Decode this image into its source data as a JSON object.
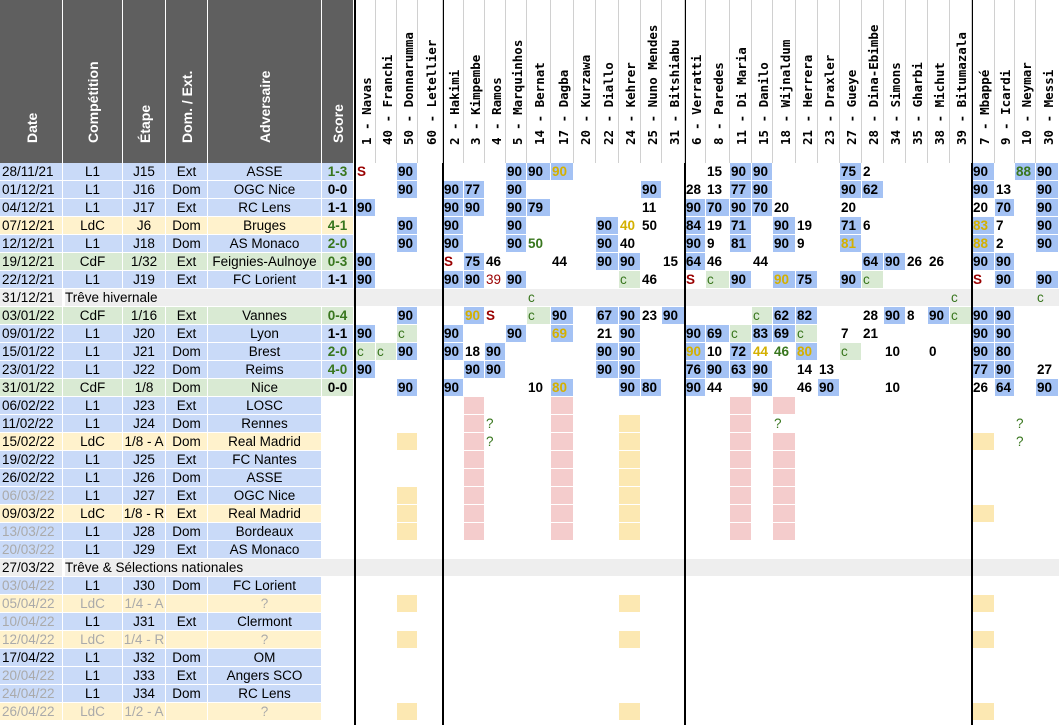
{
  "headers": [
    "Date",
    "Compétition",
    "Étape",
    "Dom. / Ext.",
    "Adversaire",
    "Score"
  ],
  "players": [
    "1 - Navas",
    "40 - Franchi",
    "50 - Donnarumma",
    "60 - Letellier",
    "2 - Hakimi",
    "3 - Kimpembe",
    "4 - Ramos",
    "5 - Marquinhos",
    "14 - Bernat",
    "17 - Dagba",
    "20 - Kurzawa",
    "22 - Diallo",
    "24 - Kehrer",
    "25 - Nuno Mendes",
    "31 - Bitshiabu",
    "6 - Verratti",
    "8 - Paredes",
    "11 - Di Maria",
    "15 - Danilo",
    "18 - Wijnaldum",
    "21 - Herrera",
    "23 - Draxler",
    "27 - Gueye",
    "28 - Dina-Ebimbe",
    "34 - Simons",
    "35 - Gharbi",
    "38 - Michut",
    "39 - Bitumazala",
    "7 - Mbappé",
    "9 - Icardi",
    "10 - Neymar",
    "30 - Messi"
  ],
  "colors": {
    "header": "#5f5f5f",
    "L1": "#c9daf8",
    "LdC": "#fff2cc",
    "CdF": "#d9ead3",
    "break": "#eeeeee",
    "starter": "#a4c2f4",
    "sub": "#d9ead3",
    "injured": "#f4cccc",
    "suspended": "#fce5cd",
    "lg_ldc": "#fce8b2",
    "highlight": "#ffff00"
  },
  "rows": [
    {
      "date": "28/11/21",
      "comp": "L1",
      "stage": "J15",
      "venue": "Ext",
      "opp": "ASSE",
      "score": "1-3",
      "played": true,
      "res": "W",
      "cells": [
        "S",
        "",
        "90",
        "",
        "",
        "",
        "",
        "90",
        "90",
        "90",
        "",
        "",
        "",
        "",
        "",
        "",
        "15",
        "90",
        "90",
        "",
        "",
        "",
        "75",
        "2",
        "",
        "",
        "",
        "",
        "90",
        "",
        "88",
        "90"
      ]
    },
    {
      "date": "01/12/21",
      "comp": "L1",
      "stage": "J16",
      "venue": "Dom",
      "opp": "OGC Nice",
      "score": "0-0",
      "played": true,
      "res": "D",
      "cells": [
        "",
        "",
        "90",
        "",
        "90",
        "77",
        "",
        "90",
        "",
        "",
        "",
        "",
        "",
        "90",
        "",
        "28",
        "13",
        "77",
        "90",
        "",
        "",
        "",
        "90",
        "62",
        "",
        "",
        "",
        "",
        "90",
        "13",
        "",
        "90"
      ]
    },
    {
      "date": "04/12/21",
      "comp": "L1",
      "stage": "J17",
      "venue": "Ext",
      "opp": "RC Lens",
      "score": "1-1",
      "played": true,
      "res": "D",
      "cells": [
        "90",
        "",
        "",
        "",
        "90",
        "90",
        "",
        "90",
        "79",
        "",
        "",
        "",
        "",
        "11",
        "",
        "90",
        "70",
        "90",
        "70",
        "20",
        "",
        "",
        "20",
        "",
        "",
        "",
        "",
        "",
        "20",
        "70",
        "",
        "90"
      ]
    },
    {
      "date": "07/12/21",
      "comp": "LdC",
      "stage": "J6",
      "venue": "Dom",
      "opp": "Bruges",
      "score": "4-1",
      "played": true,
      "res": "W",
      "cells": [
        "",
        "",
        "90",
        "",
        "90",
        "",
        "",
        "90",
        "",
        "",
        "",
        "90",
        "40",
        "50",
        "",
        "84",
        "19",
        "71",
        "",
        "90",
        "19",
        "",
        "71",
        "6",
        "",
        "",
        "",
        "",
        "83",
        "7",
        "",
        "90"
      ]
    },
    {
      "date": "12/12/21",
      "comp": "L1",
      "stage": "J18",
      "venue": "Dom",
      "opp": "AS Monaco",
      "score": "2-0",
      "played": true,
      "res": "W",
      "cells": [
        "",
        "",
        "90",
        "",
        "90",
        "",
        "",
        "90",
        "50",
        "",
        "",
        "90",
        "40",
        "",
        "",
        "90",
        "9",
        "81",
        "",
        "90",
        "9",
        "",
        "81",
        "",
        "",
        "",
        "",
        "",
        "88",
        "2",
        "",
        "90"
      ]
    },
    {
      "date": "19/12/21",
      "comp": "CdF",
      "stage": "1/32",
      "venue": "Ext",
      "opp": "Feignies-Aulnoye",
      "score": "0-3",
      "played": true,
      "res": "W",
      "cells": [
        "90",
        "",
        "",
        "",
        "S",
        "75",
        "46",
        "",
        "",
        "44",
        "",
        "90",
        "90",
        "",
        "15",
        "64",
        "46",
        "",
        "44",
        "",
        "",
        "",
        "",
        "64",
        "90",
        "26",
        "26",
        "",
        "90",
        "90",
        "",
        ""
      ]
    },
    {
      "date": "22/12/21",
      "comp": "L1",
      "stage": "J19",
      "venue": "Ext",
      "opp": "FC Lorient",
      "score": "1-1",
      "played": true,
      "res": "D",
      "cells": [
        "90",
        "",
        "",
        "",
        "90",
        "90",
        "39",
        "90",
        "",
        "",
        "",
        "",
        "c",
        "46",
        "",
        "S",
        "c",
        "90",
        "",
        "90",
        "75",
        "",
        "90",
        "c",
        "",
        "",
        "",
        "",
        "S",
        "90",
        "",
        "90"
      ]
    },
    {
      "break": true,
      "date": "31/12/21",
      "label": "Trêve hivernale",
      "cells": [
        "",
        "",
        "",
        "",
        "",
        "",
        "",
        "",
        "c",
        "",
        "",
        "",
        "",
        "",
        "",
        "",
        "",
        "",
        "",
        "",
        "",
        "",
        "",
        "",
        "",
        "",
        "",
        "c",
        "",
        "",
        "",
        "c"
      ]
    },
    {
      "date": "03/01/22",
      "comp": "CdF",
      "stage": "1/16",
      "venue": "Ext",
      "opp": "Vannes",
      "score": "0-4",
      "played": true,
      "res": "W",
      "cells": [
        "",
        "",
        "90",
        "",
        "",
        "90",
        "S",
        "",
        "c",
        "90",
        "",
        "67",
        "90",
        "23",
        "90",
        "",
        "",
        "",
        "c",
        "62",
        "82",
        "",
        "",
        "28",
        "90",
        "8",
        "90",
        "c",
        "90",
        "90",
        "",
        ""
      ]
    },
    {
      "date": "09/01/22",
      "comp": "L1",
      "stage": "J20",
      "venue": "Ext",
      "opp": "Lyon",
      "score": "1-1",
      "played": true,
      "res": "D",
      "cells": [
        "90",
        "",
        "c",
        "",
        "90",
        "",
        "",
        "90",
        "",
        "69",
        "",
        "21",
        "90",
        "",
        "",
        "90",
        "69",
        "c",
        "83",
        "69",
        "c",
        "",
        "7",
        "21",
        "",
        "",
        "",
        "",
        "90",
        "90",
        "",
        ""
      ]
    },
    {
      "date": "15/01/22",
      "comp": "L1",
      "stage": "J21",
      "venue": "Dom",
      "opp": "Brest",
      "score": "2-0",
      "played": true,
      "res": "W",
      "cells": [
        "c",
        "c",
        "90",
        "",
        "90",
        "18",
        "90",
        "",
        "",
        "",
        "",
        "90",
        "90",
        "",
        "",
        "90",
        "10",
        "72",
        "44",
        "46",
        "80",
        "",
        "c",
        "",
        "10",
        "",
        "0",
        "",
        "90",
        "80",
        "",
        ""
      ]
    },
    {
      "date": "23/01/22",
      "comp": "L1",
      "stage": "J22",
      "venue": "Dom",
      "opp": "Reims",
      "score": "4-0",
      "played": true,
      "res": "W",
      "cells": [
        "90",
        "",
        "",
        "",
        "",
        "90",
        "90",
        "",
        "",
        "",
        "",
        "90",
        "90",
        "",
        "",
        "76",
        "90",
        "63",
        "90",
        "",
        "14",
        "13",
        "",
        "",
        "",
        "",
        "",
        "",
        "77",
        "90",
        "",
        "27"
      ]
    },
    {
      "date": "31/01/22",
      "comp": "CdF",
      "stage": "1/8",
      "venue": "Dom",
      "opp": "Nice",
      "score": "0-0",
      "played": true,
      "res": "D",
      "cells": [
        "",
        "",
        "90",
        "",
        "90",
        "",
        "",
        "",
        "10",
        "80",
        "",
        "",
        "90",
        "80",
        "",
        "90",
        "44",
        "",
        "90",
        "",
        "46",
        "90",
        "",
        "",
        "10",
        "",
        "",
        "",
        "26",
        "64",
        "",
        "90"
      ]
    },
    {
      "date": "06/02/22",
      "comp": "L1",
      "stage": "J23",
      "venue": "Ext",
      "opp": "LOSC",
      "cells": []
    },
    {
      "date": "11/02/22",
      "comp": "L1",
      "stage": "J24",
      "venue": "Dom",
      "opp": "Rennes",
      "cells": [
        "",
        "",
        "",
        "",
        "",
        "",
        "?",
        "",
        "",
        "",
        "",
        "",
        "",
        "",
        "",
        "",
        "",
        "",
        "",
        "?",
        "",
        "",
        "",
        "",
        "",
        "",
        "",
        "",
        "",
        "",
        "?",
        ""
      ]
    },
    {
      "date": "15/02/22",
      "comp": "LdC",
      "stage": "1/8 - A",
      "venue": "Dom",
      "opp": "Real Madrid",
      "cells": [
        "",
        "",
        "",
        "",
        "",
        "",
        "?",
        "",
        "",
        "",
        "",
        "",
        "",
        "",
        "",
        "",
        "",
        "",
        "",
        "",
        "",
        "",
        "",
        "",
        "",
        "",
        "",
        "",
        "",
        "",
        "?",
        ""
      ]
    },
    {
      "date": "19/02/22",
      "comp": "L1",
      "stage": "J25",
      "venue": "Ext",
      "opp": "FC Nantes",
      "cells": []
    },
    {
      "date": "26/02/22",
      "comp": "L1",
      "stage": "J26",
      "venue": "Dom",
      "opp": "ASSE",
      "cells": []
    },
    {
      "date": "06/03/22",
      "comp": "L1",
      "stage": "J27",
      "venue": "Ext",
      "opp": "OGC Nice",
      "grey": true,
      "cells": []
    },
    {
      "date": "09/03/22",
      "comp": "LdC",
      "stage": "1/8 - R",
      "venue": "Ext",
      "opp": "Real Madrid",
      "cells": []
    },
    {
      "date": "13/03/22",
      "comp": "L1",
      "stage": "J28",
      "venue": "Dom",
      "opp": "Bordeaux",
      "grey": true,
      "cells": []
    },
    {
      "date": "20/03/22",
      "comp": "L1",
      "stage": "J29",
      "venue": "Ext",
      "opp": "AS Monaco",
      "grey": true,
      "cells": []
    },
    {
      "break": true,
      "date": "27/03/22",
      "label": "Trêve & Sélections nationales",
      "cells": []
    },
    {
      "date": "03/04/22",
      "comp": "L1",
      "stage": "J30",
      "venue": "Dom",
      "opp": "FC Lorient",
      "grey": true,
      "cells": []
    },
    {
      "date": "05/04/22",
      "comp": "LdC",
      "stage": "1/4 - A",
      "venue": "",
      "opp": "?",
      "grey": true,
      "allgrey": true,
      "cells": []
    },
    {
      "date": "10/04/22",
      "comp": "L1",
      "stage": "J31",
      "venue": "Ext",
      "opp": "Clermont",
      "grey": true,
      "cells": []
    },
    {
      "date": "12/04/22",
      "comp": "LdC",
      "stage": "1/4 - R",
      "venue": "",
      "opp": "?",
      "grey": true,
      "allgrey": true,
      "cells": []
    },
    {
      "date": "17/04/22",
      "comp": "L1",
      "stage": "J32",
      "venue": "Dom",
      "opp": "OM",
      "cells": []
    },
    {
      "date": "20/04/22",
      "comp": "L1",
      "stage": "J33",
      "venue": "Ext",
      "opp": "Angers SCO",
      "grey": true,
      "cells": []
    },
    {
      "date": "24/04/22",
      "comp": "L1",
      "stage": "J34",
      "venue": "Dom",
      "opp": "RC Lens",
      "grey": true,
      "cells": []
    },
    {
      "date": "26/04/22",
      "comp": "LdC",
      "stage": "1/2 - A",
      "venue": "",
      "opp": "?",
      "grey": true,
      "allgrey": true,
      "cells": []
    }
  ]
}
